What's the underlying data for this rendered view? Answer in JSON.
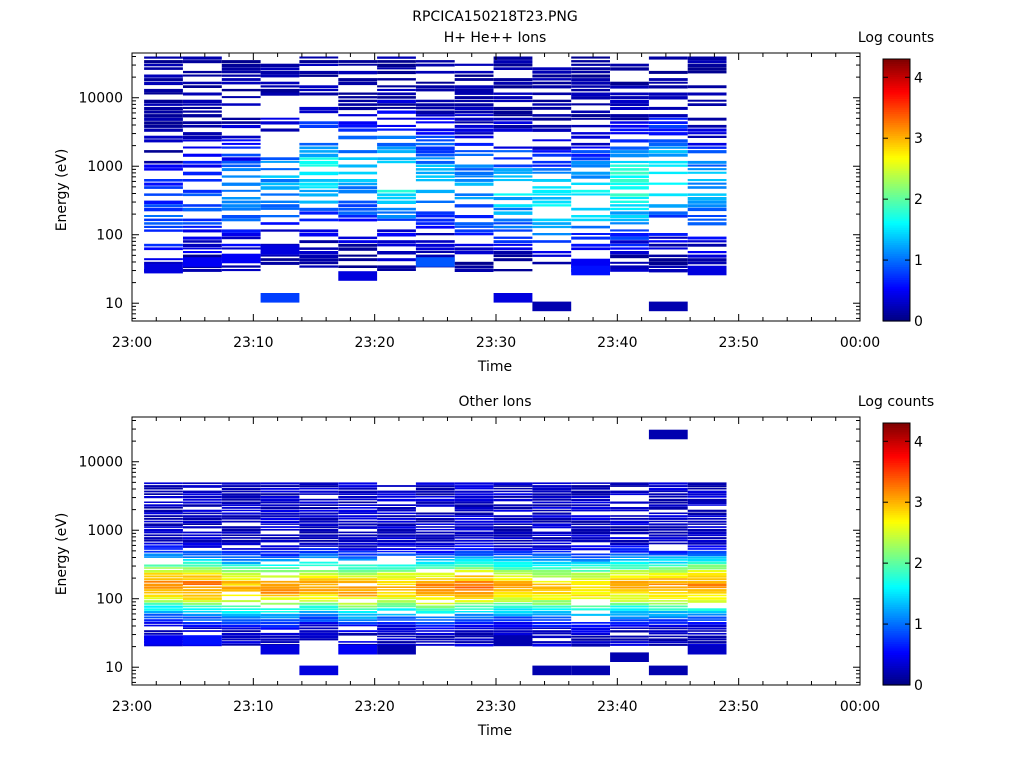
{
  "figure_title": "RPCICA150218T23.PNG",
  "colors": {
    "jet_stops": [
      "#00007f",
      "#0000ff",
      "#007fff",
      "#00ffff",
      "#7fff7f",
      "#ffff00",
      "#ff7f00",
      "#ff0000",
      "#7f0000"
    ]
  },
  "chart_data": [
    {
      "type": "heatmap",
      "title": "H+ He++ Ions",
      "xlabel": "Time",
      "ylabel": "Energy (eV)",
      "x_ticks": [
        "23:00",
        "23:10",
        "23:20",
        "23:30",
        "23:40",
        "23:50",
        "00:00"
      ],
      "x_range_minutes": [
        0,
        60
      ],
      "y_scale": "log",
      "y_ticks": [
        "10",
        "100",
        "1000",
        "10000"
      ],
      "y_range_eV": [
        5.5,
        45000
      ],
      "colorbar": {
        "label": "Log counts",
        "ticks": [
          "0",
          "1",
          "2",
          "3",
          "4"
        ],
        "range": [
          0,
          4.3
        ]
      },
      "time_bin_starts_min": [
        1,
        4.2,
        7.4,
        10.6,
        13.8,
        17,
        20.2,
        23.4,
        26.6,
        29.8,
        33,
        36.2,
        39.4,
        42.6,
        45.8
      ],
      "time_bin_width_min": 3.2,
      "intensity_profile": {
        "energy_range_eV": [
          28,
          40000
        ],
        "peak_energy_eV": [
          220,
          300,
          400,
          600,
          800,
          700,
          700,
          600,
          500,
          400,
          300,
          350,
          500,
          650,
          450
        ],
        "peak_log_counts": [
          0.8,
          0.9,
          1.1,
          1.2,
          1.6,
          1.3,
          1.7,
          1.3,
          1.2,
          1.4,
          1.4,
          1.5,
          1.8,
          1.6,
          1.3
        ],
        "fill_fraction": 0.65,
        "low_energy_spots": [
          [
            1,
            32,
            0.4
          ],
          [
            2,
            40,
            0.5
          ],
          [
            3,
            45,
            0.5
          ],
          [
            4,
            12,
            0.8
          ],
          [
            4,
            60,
            0.4
          ],
          [
            6,
            25,
            0.4
          ],
          [
            8,
            40,
            0.9
          ],
          [
            10,
            12,
            0.4
          ],
          [
            11,
            9,
            0.2
          ],
          [
            12,
            38,
            0.5
          ],
          [
            12,
            30,
            0.6
          ],
          [
            14,
            9,
            0.2
          ],
          [
            15,
            30,
            0.4
          ]
        ]
      }
    },
    {
      "type": "heatmap",
      "title": "Other Ions",
      "xlabel": "Time",
      "ylabel": "Energy (eV)",
      "x_ticks": [
        "23:00",
        "23:10",
        "23:20",
        "23:30",
        "23:40",
        "23:50",
        "00:00"
      ],
      "x_range_minutes": [
        0,
        60
      ],
      "y_scale": "log",
      "y_ticks": [
        "10",
        "100",
        "1000",
        "10000"
      ],
      "y_range_eV": [
        5.5,
        45000
      ],
      "colorbar": {
        "label": "Log counts",
        "ticks": [
          "0",
          "1",
          "2",
          "3",
          "4"
        ],
        "range": [
          0,
          4.3
        ]
      },
      "time_bin_starts_min": [
        1,
        4.2,
        7.4,
        10.6,
        13.8,
        17,
        20.2,
        23.4,
        26.6,
        29.8,
        33,
        36.2,
        39.4,
        42.6,
        45.8
      ],
      "time_bin_width_min": 3.2,
      "intensity_profile": {
        "energy_range_eV": [
          20,
          5000
        ],
        "peak_energy_eV": [
          160,
          150,
          140,
          140,
          150,
          140,
          145,
          140,
          150,
          150,
          145,
          140,
          150,
          150,
          155
        ],
        "peak_log_counts": [
          3.1,
          3.2,
          3.0,
          3.1,
          3.0,
          3.1,
          3.0,
          3.2,
          3.2,
          3.0,
          2.9,
          2.9,
          3.0,
          3.1,
          3.2
        ],
        "fill_fraction": 0.92,
        "low_energy_spots": [
          [
            1,
            25,
            0.5
          ],
          [
            2,
            25,
            0.6
          ],
          [
            4,
            18,
            0.4
          ],
          [
            5,
            9,
            0.4
          ],
          [
            6,
            18,
            0.5
          ],
          [
            7,
            18,
            0.2
          ],
          [
            10,
            25,
            0.2
          ],
          [
            11,
            9,
            0.2
          ],
          [
            12,
            9,
            0.2
          ],
          [
            13,
            14,
            0.2
          ],
          [
            14,
            9,
            0.2
          ],
          [
            15,
            18,
            0.3
          ],
          [
            14,
            25000,
            0.2
          ]
        ]
      }
    }
  ]
}
